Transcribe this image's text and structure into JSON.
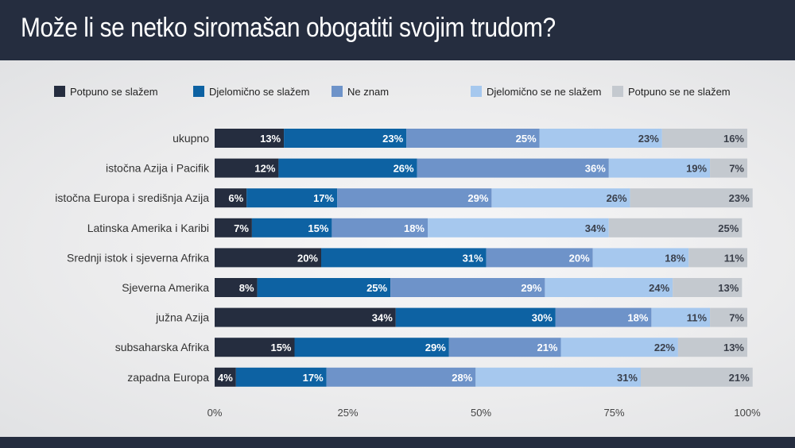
{
  "title": "Može li se netko siromašan obogatiti svojim trudom?",
  "chart_data": {
    "type": "bar",
    "orientation": "horizontal",
    "stacked": true,
    "title": "Može li se netko siromašan obogatiti svojim trudom?",
    "categories": [
      "ukupno",
      "istočna Azija i Pacifik",
      "istočna Europa i središnja Azija",
      "Latinska Amerika i Karibi",
      "Srednji istok i sjeverna Afrika",
      "Sjeverna Amerika",
      "južna Azija",
      "subsaharska Afrika",
      "zapadna Europa"
    ],
    "series": [
      {
        "name": "Potpuno se slažem",
        "color": "#252d3f",
        "label_color": "#ffffff",
        "values": [
          13,
          12,
          6,
          7,
          20,
          8,
          34,
          15,
          4
        ]
      },
      {
        "name": "Djelomično se slažem",
        "color": "#0d62a3",
        "label_color": "#ffffff",
        "values": [
          23,
          26,
          17,
          15,
          31,
          25,
          30,
          29,
          17
        ]
      },
      {
        "name": "Ne znam",
        "color": "#6e93c9",
        "label_color": "#ffffff",
        "values": [
          25,
          36,
          29,
          18,
          20,
          29,
          18,
          21,
          28
        ]
      },
      {
        "name": "Djelomično se ne slažem",
        "color": "#a6c8ee",
        "label_color": "#3a3f4a",
        "values": [
          23,
          19,
          26,
          34,
          18,
          24,
          11,
          22,
          31
        ]
      },
      {
        "name": "Potpuno se ne slažem",
        "color": "#c4c9cf",
        "label_color": "#3a3f4a",
        "values": [
          16,
          7,
          23,
          25,
          11,
          13,
          7,
          13,
          21
        ]
      }
    ],
    "value_suffix": "%",
    "xlim": [
      0,
      100
    ],
    "xticks": [
      0,
      25,
      50,
      75,
      100
    ],
    "xtick_labels": [
      "0%",
      "25%",
      "50%",
      "75%",
      "100%"
    ],
    "legend_position": "top",
    "grid": false
  }
}
